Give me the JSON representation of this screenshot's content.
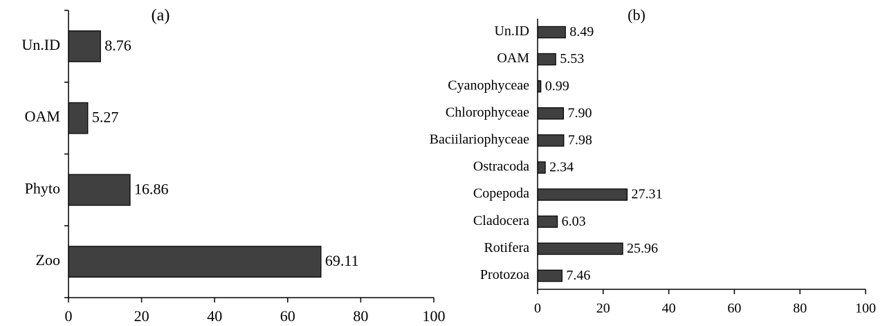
{
  "chart_data": [
    {
      "type": "bar",
      "orientation": "horizontal",
      "title": "(a)",
      "categories": [
        "Un.ID",
        "OAM",
        "Phyto",
        "Zoo"
      ],
      "values": [
        8.76,
        5.27,
        16.86,
        69.11
      ],
      "color": "#404040",
      "xlim": [
        0,
        100
      ],
      "xticks": [
        0,
        20,
        40,
        60,
        80,
        100
      ]
    },
    {
      "type": "bar",
      "orientation": "horizontal",
      "title": "(b)",
      "categories": [
        "Un.ID",
        "OAM",
        "Cyanophyceae",
        "Chlorophyceae",
        "Baciilariophyceae",
        "Ostracoda",
        "Copepoda",
        "Cladocera",
        "Rotifera",
        "Protozoa"
      ],
      "values": [
        8.49,
        5.53,
        0.99,
        7.9,
        7.98,
        2.34,
        27.31,
        6.03,
        25.96,
        7.46
      ],
      "value_labels": [
        "8.49",
        "5.53",
        "0.99",
        "7.90",
        "7.98",
        "2.34",
        "27.31",
        "6.03",
        "25.96",
        "7.46"
      ],
      "color": "#404040",
      "xlim": [
        0,
        100
      ],
      "xticks": [
        0,
        20,
        40,
        60,
        80,
        100
      ]
    }
  ]
}
